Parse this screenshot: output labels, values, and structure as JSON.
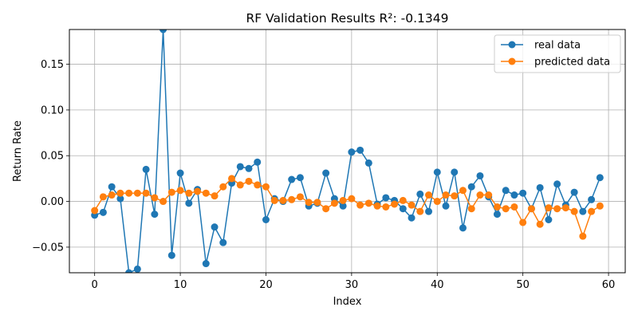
{
  "chart_data": {
    "type": "line",
    "title": "RF Validation Results R²: -0.1349",
    "xlabel": "Index",
    "ylabel": "Return Rate",
    "xlim": [
      -2.95,
      61.95
    ],
    "ylim": [
      -0.078,
      0.188
    ],
    "xticks": [
      0,
      10,
      20,
      30,
      40,
      50,
      60
    ],
    "yticks": [
      -0.05,
      0.0,
      0.05,
      0.1,
      0.15
    ],
    "ytick_labels": [
      "−0.05",
      "0.00",
      "0.05",
      "0.10",
      "0.15"
    ],
    "grid": true,
    "legend_position": "top-right",
    "series": [
      {
        "name": "real data",
        "color": "#1f77b4",
        "values": [
          -0.015,
          -0.012,
          0.016,
          0.003,
          -0.078,
          -0.074,
          0.035,
          -0.014,
          0.188,
          -0.059,
          0.031,
          -0.002,
          0.013,
          -0.068,
          -0.028,
          -0.045,
          0.02,
          0.038,
          0.036,
          0.043,
          -0.02,
          0.003,
          0.0,
          0.024,
          0.026,
          -0.005,
          -0.002,
          0.031,
          0.003,
          -0.005,
          0.054,
          0.056,
          0.042,
          -0.003,
          0.004,
          0.001,
          -0.008,
          -0.018,
          0.008,
          -0.011,
          0.032,
          -0.005,
          0.032,
          -0.029,
          0.016,
          0.028,
          0.005,
          -0.014,
          0.012,
          0.007,
          0.009,
          -0.008,
          0.015,
          -0.02,
          0.019,
          -0.004,
          0.01,
          -0.011,
          0.002,
          0.026
        ]
      },
      {
        "name": "predicted data",
        "color": "#ff7f0e",
        "values": [
          -0.01,
          0.005,
          0.007,
          0.009,
          0.009,
          0.009,
          0.009,
          0.004,
          0.0,
          0.01,
          0.012,
          0.009,
          0.011,
          0.009,
          0.006,
          0.016,
          0.025,
          0.018,
          0.022,
          0.018,
          0.016,
          0.001,
          0.001,
          0.002,
          0.005,
          -0.001,
          -0.001,
          -0.008,
          -0.002,
          0.001,
          0.003,
          -0.004,
          -0.002,
          -0.005,
          -0.006,
          -0.003,
          0.001,
          -0.004,
          -0.011,
          0.007,
          0.0,
          0.007,
          0.006,
          0.012,
          -0.008,
          0.007,
          0.007,
          -0.006,
          -0.008,
          -0.006,
          -0.023,
          -0.008,
          -0.025,
          -0.007,
          -0.008,
          -0.007,
          -0.011,
          -0.038,
          -0.011,
          -0.005
        ]
      }
    ]
  }
}
